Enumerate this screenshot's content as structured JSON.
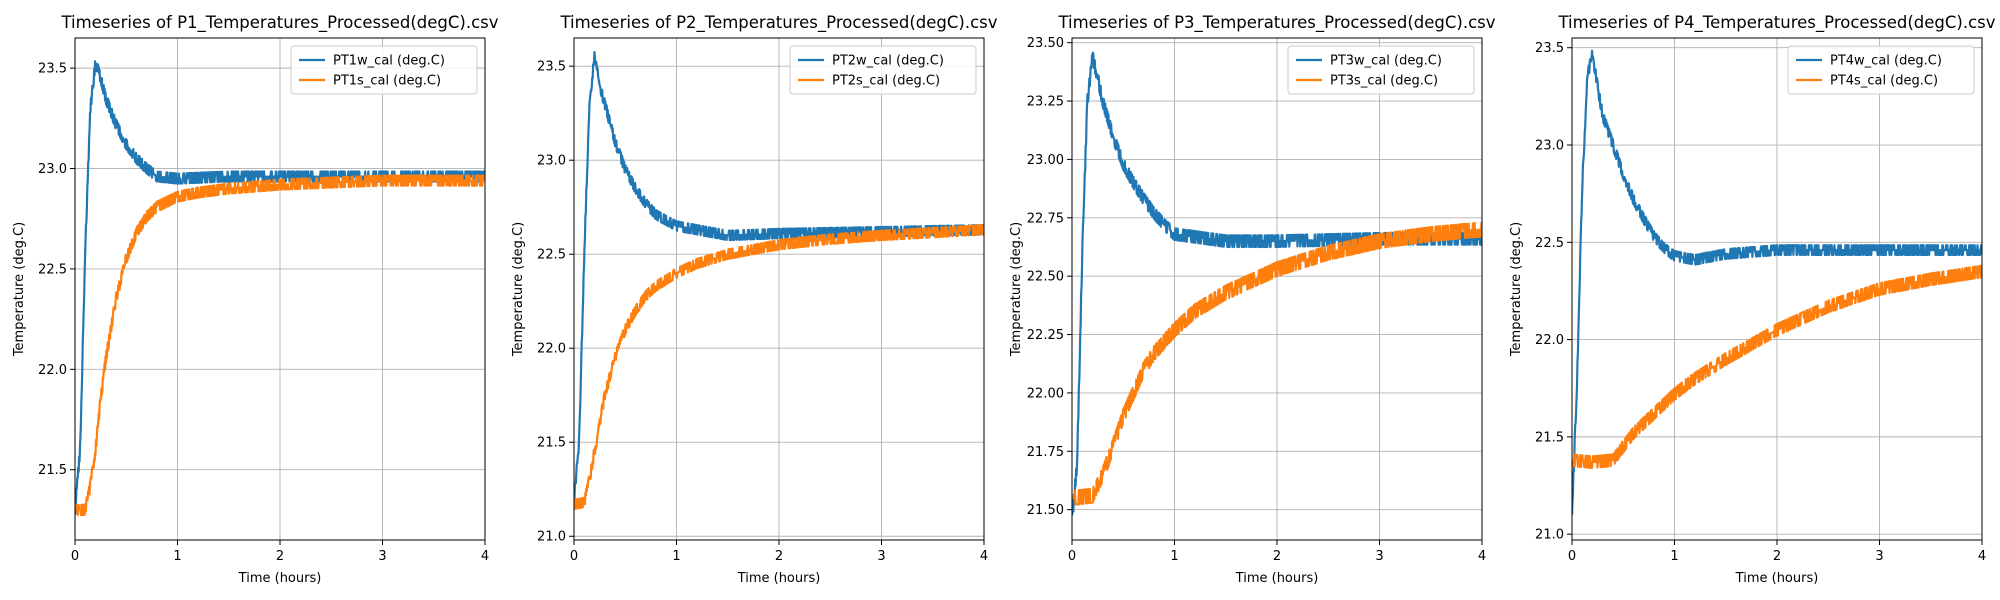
{
  "colors": {
    "series1": "#1f77b4",
    "series2": "#ff7f0e",
    "grid": "#b0b0b0",
    "legend_border": "#cccccc"
  },
  "chart_data": [
    {
      "type": "line",
      "title": "Timeseries of P1_Temperatures_Processed(degC).csv",
      "xlabel": "Time (hours)",
      "ylabel": "Temperature (deg.C)",
      "xlim": [
        0,
        4
      ],
      "ylim": [
        21.15,
        23.65
      ],
      "xticks": [
        0,
        1,
        2,
        3,
        4
      ],
      "yticks": [
        "21.5",
        "22.0",
        "22.5",
        "23.0",
        "23.5"
      ],
      "grid": true,
      "legend_loc": "top-right",
      "series": [
        {
          "name": "PT1w_cal (deg.C)",
          "noise": 0.025,
          "x": [
            0,
            0.05,
            0.1,
            0.15,
            0.2,
            0.25,
            0.3,
            0.4,
            0.5,
            0.6,
            0.7,
            0.8,
            1.0,
            1.5,
            2.0,
            3.0,
            4.0
          ],
          "y": [
            21.3,
            21.6,
            22.6,
            23.3,
            23.53,
            23.45,
            23.35,
            23.22,
            23.12,
            23.05,
            23.0,
            22.96,
            22.95,
            22.96,
            22.96,
            22.96,
            22.96
          ]
        },
        {
          "name": "PT1s_cal (deg.C)",
          "noise": 0.025,
          "x": [
            0,
            0.1,
            0.15,
            0.2,
            0.25,
            0.3,
            0.4,
            0.5,
            0.6,
            0.7,
            0.8,
            1.0,
            1.2,
            1.5,
            2.0,
            2.5,
            3.0,
            4.0
          ],
          "y": [
            21.3,
            21.3,
            21.42,
            21.6,
            21.85,
            22.05,
            22.35,
            22.55,
            22.68,
            22.76,
            22.81,
            22.86,
            22.88,
            22.9,
            22.92,
            22.93,
            22.94,
            22.94
          ]
        }
      ]
    },
    {
      "type": "line",
      "title": "Timeseries of P2_Temperatures_Processed(degC).csv",
      "xlabel": "Time (hours)",
      "ylabel": "Temperature (deg.C)",
      "xlim": [
        0,
        4
      ],
      "ylim": [
        20.98,
        23.65
      ],
      "xticks": [
        0,
        1,
        2,
        3,
        4
      ],
      "yticks": [
        "21.0",
        "21.5",
        "22.0",
        "22.5",
        "23.0",
        "23.5"
      ],
      "grid": true,
      "legend_loc": "top-right",
      "series": [
        {
          "name": "PT2w_cal (deg.C)",
          "noise": 0.025,
          "x": [
            0,
            0.05,
            0.1,
            0.15,
            0.2,
            0.25,
            0.3,
            0.4,
            0.5,
            0.6,
            0.7,
            0.8,
            1.0,
            1.5,
            2.0,
            3.0,
            4.0
          ],
          "y": [
            21.2,
            21.5,
            22.5,
            23.3,
            23.55,
            23.4,
            23.3,
            23.1,
            22.95,
            22.85,
            22.77,
            22.71,
            22.65,
            22.6,
            22.61,
            22.62,
            22.63
          ]
        },
        {
          "name": "PT2s_cal (deg.C)",
          "noise": 0.025,
          "x": [
            0,
            0.1,
            0.15,
            0.2,
            0.25,
            0.3,
            0.4,
            0.5,
            0.6,
            0.7,
            0.8,
            1.0,
            1.2,
            1.5,
            2.0,
            2.5,
            3.0,
            4.0
          ],
          "y": [
            21.17,
            21.18,
            21.3,
            21.45,
            21.6,
            21.75,
            21.95,
            22.1,
            22.2,
            22.28,
            22.33,
            22.4,
            22.45,
            22.5,
            22.55,
            22.58,
            22.6,
            22.63
          ]
        }
      ]
    },
    {
      "type": "line",
      "title": "Timeseries of P3_Temperatures_Processed(degC).csv",
      "xlabel": "Time (hours)",
      "ylabel": "Temperature (deg.C)",
      "xlim": [
        0,
        4
      ],
      "ylim": [
        21.37,
        23.52
      ],
      "xticks": [
        0,
        1,
        2,
        3,
        4
      ],
      "yticks": [
        "21.50",
        "21.75",
        "22.00",
        "22.25",
        "22.50",
        "22.75",
        "23.00",
        "23.25",
        "23.50"
      ],
      "grid": true,
      "legend_loc": "top-right",
      "series": [
        {
          "name": "PT3w_cal (deg.C)",
          "noise": 0.025,
          "x": [
            0,
            0.05,
            0.1,
            0.15,
            0.2,
            0.25,
            0.3,
            0.4,
            0.5,
            0.6,
            0.7,
            0.8,
            0.9,
            1.0,
            1.5,
            2.0,
            3.0,
            4.0
          ],
          "y": [
            21.45,
            21.7,
            22.6,
            23.25,
            23.44,
            23.35,
            23.25,
            23.1,
            22.98,
            22.9,
            22.83,
            22.77,
            22.72,
            22.68,
            22.65,
            22.65,
            22.66,
            22.66
          ]
        },
        {
          "name": "PT3s_cal (deg.C)",
          "noise": 0.03,
          "x": [
            0,
            0.2,
            0.3,
            0.4,
            0.5,
            0.6,
            0.7,
            0.8,
            1.0,
            1.2,
            1.5,
            2.0,
            2.5,
            3.0,
            3.5,
            4.0
          ],
          "y": [
            21.55,
            21.56,
            21.65,
            21.77,
            21.9,
            22.0,
            22.1,
            22.17,
            22.27,
            22.35,
            22.43,
            22.53,
            22.6,
            22.65,
            22.68,
            22.7
          ]
        }
      ]
    },
    {
      "type": "line",
      "title": "Timeseries of P4_Temperatures_Processed(degC).csv",
      "xlabel": "Time (hours)",
      "ylabel": "Temperature (deg.C)",
      "xlim": [
        0,
        4
      ],
      "ylim": [
        20.97,
        23.55
      ],
      "xticks": [
        0,
        1,
        2,
        3,
        4
      ],
      "yticks": [
        "21.0",
        "21.5",
        "22.0",
        "22.5",
        "23.0",
        "23.5"
      ],
      "grid": true,
      "legend_loc": "top-right",
      "series": [
        {
          "name": "PT4w_cal (deg.C)",
          "noise": 0.025,
          "x": [
            0,
            0.05,
            0.1,
            0.15,
            0.2,
            0.25,
            0.3,
            0.4,
            0.5,
            0.6,
            0.7,
            0.8,
            0.9,
            1.0,
            1.2,
            1.5,
            2.0,
            3.0,
            4.0
          ],
          "y": [
            21.1,
            21.8,
            22.8,
            23.35,
            23.47,
            23.3,
            23.15,
            23.0,
            22.85,
            22.72,
            22.62,
            22.53,
            22.47,
            22.43,
            22.41,
            22.44,
            22.46,
            22.46,
            22.46
          ]
        },
        {
          "name": "PT4s_cal (deg.C)",
          "noise": 0.03,
          "x": [
            0,
            0.2,
            0.4,
            0.5,
            0.6,
            0.8,
            1.0,
            1.2,
            1.5,
            2.0,
            2.5,
            3.0,
            3.5,
            4.0
          ],
          "y": [
            21.38,
            21.37,
            21.38,
            21.45,
            21.52,
            21.62,
            21.72,
            21.8,
            21.9,
            22.05,
            22.17,
            22.26,
            22.31,
            22.35
          ]
        }
      ]
    }
  ]
}
